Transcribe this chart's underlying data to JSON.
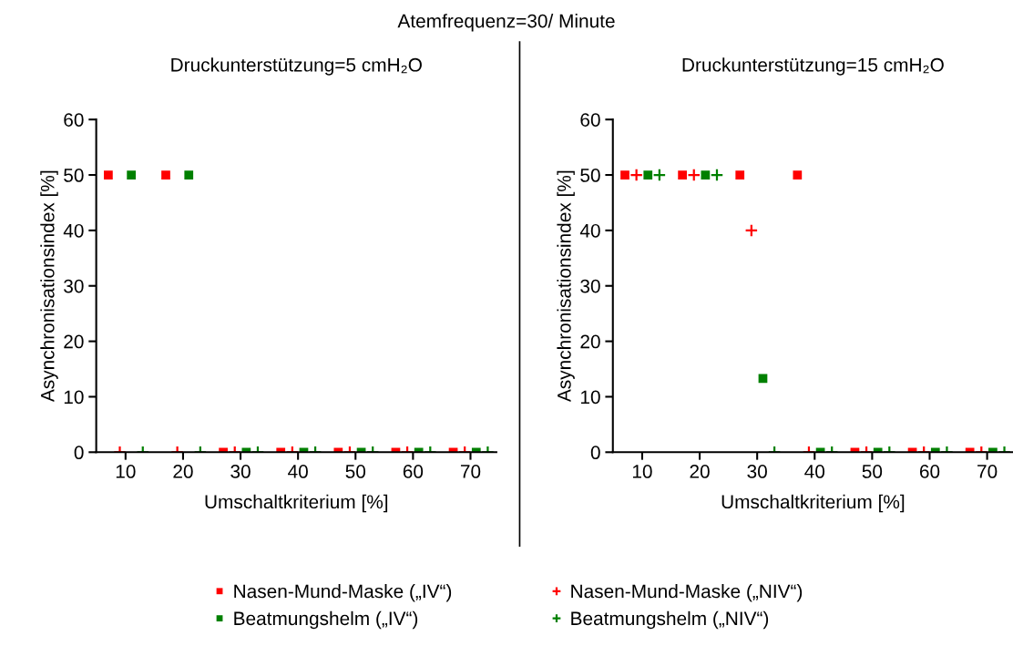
{
  "chart_data": [
    {
      "type": "scatter",
      "title": "Atemfrequenz=30/ Minute",
      "subtitle": "Druckunterstützung=5 cmH₂O",
      "xlabel": "Umschaltkriterium [%]",
      "ylabel": "Asynchronisationsindex [%]",
      "xlim": [
        4.9,
        74.5
      ],
      "xticks": [
        10,
        20,
        30,
        40,
        50,
        60,
        70
      ],
      "ylim": [
        0,
        60
      ],
      "yticks": [
        0,
        10,
        20,
        30,
        40,
        50,
        60
      ],
      "grid": false,
      "legend": "bottom",
      "series": [
        {
          "name": "Nasen-Mund-Maske („IV“)",
          "color": "#ff0000",
          "marker": "square",
          "x": [
            7,
            17,
            27,
            37,
            47,
            57,
            67
          ],
          "values": [
            50,
            50,
            0,
            0,
            0,
            0,
            0
          ]
        },
        {
          "name": "Beatmungshelm („IV“)",
          "color": "#008000",
          "marker": "square",
          "x": [
            11,
            21,
            31,
            41,
            51,
            61,
            71
          ],
          "values": [
            50,
            50,
            0,
            0,
            0,
            0,
            0
          ]
        },
        {
          "name": "Nasen-Mund-Maske („NIV“)",
          "color": "#ff0000",
          "marker": "cross",
          "x": [
            9,
            19,
            29,
            39,
            49,
            59,
            69
          ],
          "values": [
            0,
            0,
            0,
            0,
            0,
            0,
            0
          ]
        },
        {
          "name": "Beatmungshelm („NIV“)",
          "color": "#008000",
          "marker": "cross",
          "x": [
            13,
            23,
            33,
            43,
            53,
            63,
            73
          ],
          "values": [
            0,
            0,
            0,
            0,
            0,
            0,
            0
          ]
        }
      ]
    },
    {
      "type": "scatter",
      "subtitle": "Druckunterstützung=15 cmH₂O",
      "xlabel": "Umschaltkriterium [%]",
      "ylabel": "Asynchronisationsindex [%]",
      "xlim": [
        4.9,
        74.5
      ],
      "xticks": [
        10,
        20,
        30,
        40,
        50,
        60,
        70
      ],
      "ylim": [
        0,
        60
      ],
      "yticks": [
        0,
        10,
        20,
        30,
        40,
        50,
        60
      ],
      "grid": false,
      "series": [
        {
          "color": "#ff0000",
          "marker": "square",
          "x": [
            7,
            17,
            27,
            37,
            47,
            57,
            67
          ],
          "values": [
            50,
            50,
            50,
            50,
            0,
            0,
            0
          ]
        },
        {
          "color": "#008000",
          "marker": "square",
          "x": [
            11,
            21,
            31,
            41,
            51,
            61,
            71
          ],
          "values": [
            50,
            50,
            13.3,
            0,
            0,
            0,
            0
          ]
        },
        {
          "color": "#ff0000",
          "marker": "cross",
          "x": [
            9,
            19,
            29,
            39,
            49,
            59,
            69
          ],
          "values": [
            50,
            50,
            40,
            0,
            0,
            0,
            0
          ]
        },
        {
          "color": "#008000",
          "marker": "cross",
          "x": [
            13,
            23,
            33,
            43,
            53,
            63,
            73
          ],
          "values": [
            50,
            50,
            0,
            0,
            0,
            0,
            0
          ]
        }
      ]
    }
  ]
}
